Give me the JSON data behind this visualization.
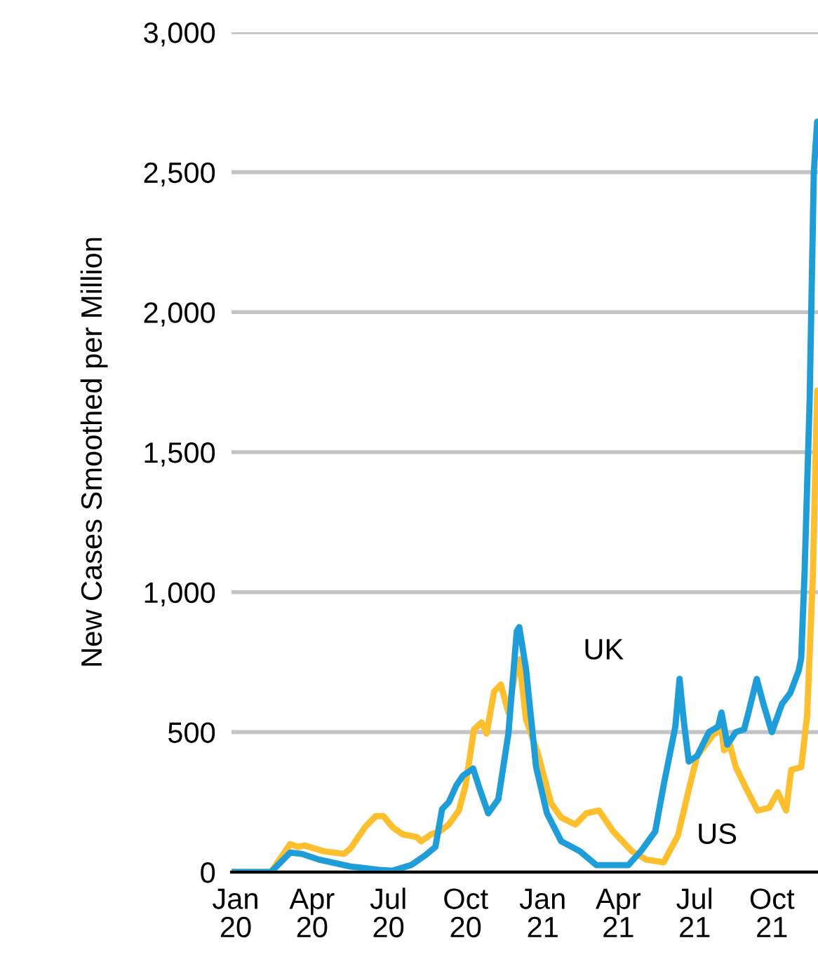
{
  "chart_data": {
    "type": "line",
    "ylabel": "New Cases Smoothed per Million",
    "x": [
      "2019-12-27",
      "2020-02-12",
      "2020-03-06",
      "2020-03-20",
      "2020-04-09",
      "2020-05-17",
      "2020-06-20",
      "2020-07-06",
      "2020-07-28",
      "2020-08-14",
      "2020-08-26",
      "2020-09-03",
      "2020-09-11",
      "2020-09-20",
      "2020-09-28",
      "2020-10-10",
      "2020-10-18",
      "2020-10-28",
      "2020-11-09",
      "2020-11-21",
      "2020-12-01",
      "2020-12-04",
      "2020-12-12",
      "2020-12-24",
      "2021-01-06",
      "2021-01-23",
      "2021-02-14",
      "2021-03-06",
      "2021-04-13",
      "2021-04-28",
      "2021-05-15",
      "2021-05-25",
      "2021-06-08",
      "2021-06-13",
      "2021-06-18",
      "2021-06-24",
      "2021-07-04",
      "2021-07-18",
      "2021-07-29",
      "2021-08-02",
      "2021-08-09",
      "2021-08-19",
      "2021-08-29",
      "2021-09-04",
      "2021-09-13",
      "2021-09-21",
      "2021-10-01",
      "2021-10-13",
      "2021-10-23",
      "2021-11-02",
      "2021-11-05",
      "2021-11-09",
      "2021-11-15",
      "2021-11-20",
      "2021-11-24"
    ],
    "series": [
      {
        "name": "UK",
        "color": "#1f9dd9",
        "values": [
          0,
          0,
          70,
          65,
          45,
          20,
          8,
          5,
          25,
          60,
          90,
          225,
          250,
          310,
          345,
          370,
          295,
          210,
          260,
          495,
          860,
          875,
          725,
          375,
          210,
          110,
          75,
          25,
          25,
          75,
          145,
          310,
          520,
          690,
          540,
          395,
          415,
          500,
          520,
          570,
          455,
          500,
          510,
          580,
          690,
          600,
          500,
          600,
          640,
          720,
          765,
          1070,
          1680,
          2500,
          2680
        ]
      },
      {
        "name": "US",
        "color": "#fdbf2d",
        "x": [
          "2019-12-27",
          "2020-02-12",
          "2020-03-06",
          "2020-03-15",
          "2020-03-23",
          "2020-04-14",
          "2020-05-09",
          "2020-05-17",
          "2020-06-03",
          "2020-06-16",
          "2020-06-25",
          "2020-07-06",
          "2020-07-18",
          "2020-08-04",
          "2020-08-09",
          "2020-08-21",
          "2020-08-31",
          "2020-09-11",
          "2020-09-23",
          "2020-10-01",
          "2020-10-11",
          "2020-10-20",
          "2020-10-26",
          "2020-11-04",
          "2020-11-12",
          "2020-11-21",
          "2020-11-29",
          "2020-12-04",
          "2020-12-12",
          "2020-12-26",
          "2021-01-11",
          "2021-01-23",
          "2021-02-09",
          "2021-02-22",
          "2021-03-09",
          "2021-03-26",
          "2021-04-17",
          "2021-05-04",
          "2021-05-25",
          "2021-06-11",
          "2021-06-24",
          "2021-07-04",
          "2021-07-23",
          "2021-08-02",
          "2021-08-05",
          "2021-08-12",
          "2021-08-19",
          "2021-09-01",
          "2021-09-14",
          "2021-09-28",
          "2021-10-08",
          "2021-10-18",
          "2021-10-24",
          "2021-11-05",
          "2021-11-12",
          "2021-11-19",
          "2021-11-24"
        ],
        "values": [
          0,
          0,
          100,
          90,
          95,
          75,
          65,
          85,
          160,
          200,
          200,
          160,
          135,
          125,
          110,
          135,
          145,
          170,
          220,
          310,
          510,
          535,
          495,
          645,
          670,
          570,
          710,
          760,
          545,
          425,
          245,
          195,
          170,
          210,
          220,
          145,
          75,
          45,
          35,
          130,
          295,
          415,
          490,
          510,
          435,
          455,
          375,
          295,
          220,
          230,
          285,
          220,
          365,
          375,
          560,
          1070,
          1720
        ]
      }
    ],
    "xlim": [
      "2019-12-27",
      "2021-11-25"
    ],
    "xticks": [
      {
        "value": "2020-01-01",
        "label": "Jan\n20"
      },
      {
        "value": "2020-04-01",
        "label": "Apr\n20"
      },
      {
        "value": "2020-07-01",
        "label": "Jul\n20"
      },
      {
        "value": "2020-10-01",
        "label": "Oct\n20"
      },
      {
        "value": "2021-01-01",
        "label": "Jan\n21"
      },
      {
        "value": "2021-04-01",
        "label": "Apr\n21"
      },
      {
        "value": "2021-07-01",
        "label": "Jul\n21"
      },
      {
        "value": "2021-10-01",
        "label": "Oct\n21"
      }
    ],
    "ylim": [
      0,
      3000
    ],
    "yticks": [
      0,
      500,
      {
        "value": 1000,
        "label": "1,000"
      },
      {
        "value": 1500,
        "label": "1,500"
      },
      {
        "value": 2000,
        "label": "2,000"
      },
      {
        "value": 2500,
        "label": "2,500"
      },
      {
        "value": 3000,
        "label": "3,000"
      }
    ],
    "grid": "y",
    "legend": false,
    "marker": "none",
    "line_style": "solid"
  }
}
